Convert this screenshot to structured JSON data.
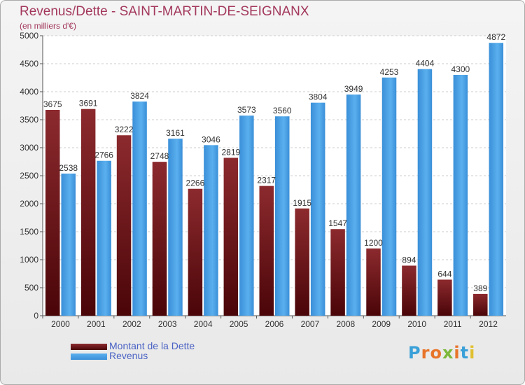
{
  "title": "Revenus/Dette - SAINT-MARTIN-DE-SEIGNANX",
  "subtitle": "(en milliers d'€)",
  "legend": {
    "debt_label": "Montant de la Dette",
    "revenue_label": "Revenus"
  },
  "logo_text": "Proxiti",
  "colors": {
    "debt": "#6b0d12",
    "revenue": "#3c9be2",
    "title": "#a3385b",
    "legend_text": "#4a62c4"
  },
  "chart_data": {
    "type": "bar",
    "title": "Revenus/Dette - SAINT-MARTIN-DE-SEIGNANX",
    "ylabel": "(en milliers d'€)",
    "xlabel": "",
    "categories": [
      "2000",
      "2001",
      "2002",
      "2003",
      "2004",
      "2005",
      "2006",
      "2007",
      "2008",
      "2009",
      "2010",
      "2011",
      "2012"
    ],
    "series": [
      {
        "name": "Montant de la Dette",
        "values": [
          3675,
          3691,
          3222,
          2748,
          2266,
          2819,
          2317,
          1915,
          1547,
          1200,
          894,
          644,
          389
        ]
      },
      {
        "name": "Revenus",
        "values": [
          2538,
          2766,
          3824,
          3161,
          3046,
          3573,
          3560,
          3804,
          3949,
          4253,
          4404,
          4300,
          4872
        ]
      }
    ],
    "ylim": [
      0,
      5000
    ],
    "yticks": [
      0,
      500,
      1000,
      1500,
      2000,
      2500,
      3000,
      3500,
      4000,
      4500,
      5000
    ],
    "grid": true,
    "legend_position": "bottom-left"
  }
}
